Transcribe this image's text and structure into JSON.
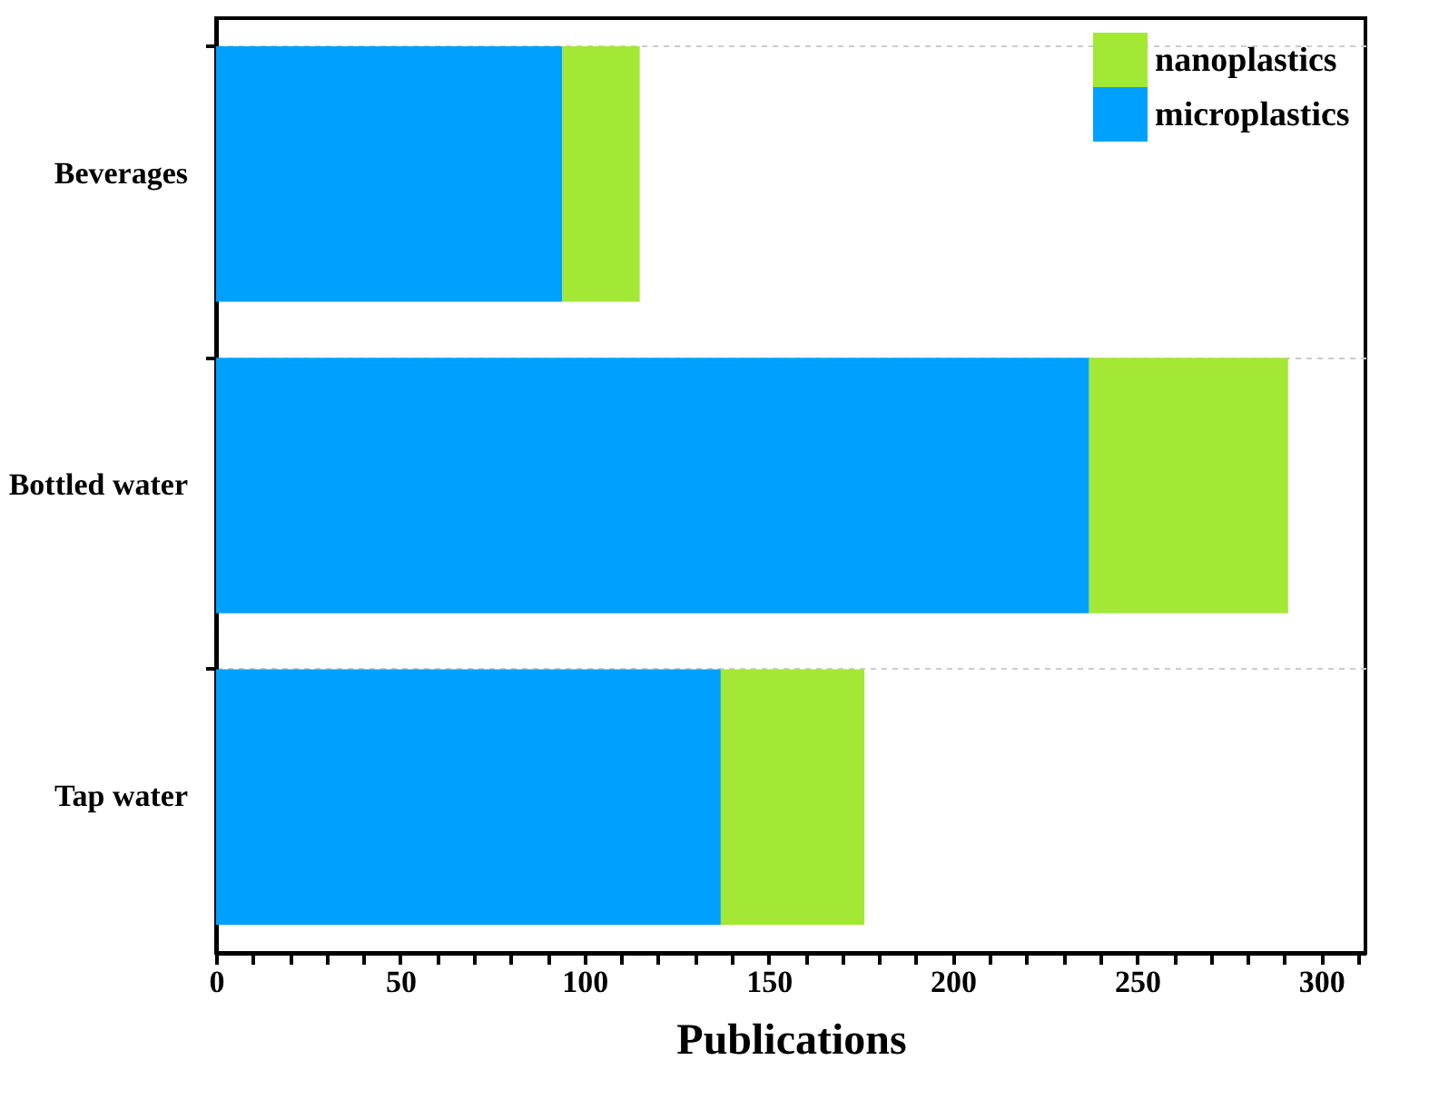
{
  "chart_data": {
    "type": "bar",
    "orientation": "horizontal",
    "stacked": true,
    "categories": [
      "Beverages",
      "Bottled water",
      "Tap water"
    ],
    "series": [
      {
        "name": "microplastics",
        "color": "#00a0ff",
        "values": [
          94,
          237,
          137
        ]
      },
      {
        "name": "nanoplastics",
        "color": "#a2e834",
        "values": [
          21,
          54,
          39
        ]
      }
    ],
    "xlabel": "Publications",
    "xlim": [
      0,
      312
    ],
    "xticks": [
      0,
      {
        "value": 10,
        "label": null
      },
      {
        "value": 20,
        "label": null
      },
      {
        "value": 30,
        "label": null
      },
      {
        "value": 40,
        "label": null
      },
      50,
      {
        "value": 60,
        "label": null
      },
      {
        "value": 70,
        "label": null
      },
      {
        "value": 80,
        "label": null
      },
      {
        "value": 90,
        "label": null
      },
      100,
      {
        "value": 110,
        "label": null
      },
      {
        "value": 120,
        "label": null
      },
      {
        "value": 130,
        "label": null
      },
      {
        "value": 140,
        "label": null
      },
      150,
      {
        "value": 160,
        "label": null
      },
      {
        "value": 170,
        "label": null
      },
      {
        "value": 180,
        "label": null
      },
      {
        "value": 190,
        "label": null
      },
      200,
      {
        "value": 210,
        "label": null
      },
      {
        "value": 220,
        "label": null
      },
      {
        "value": 230,
        "label": null
      },
      {
        "value": 240,
        "label": null
      },
      250,
      {
        "value": 260,
        "label": null
      },
      {
        "value": 270,
        "label": null
      },
      {
        "value": 280,
        "label": null
      },
      {
        "value": 290,
        "label": null
      },
      300,
      {
        "value": 310,
        "label": null
      }
    ],
    "grid": "y",
    "legend": "top right"
  }
}
